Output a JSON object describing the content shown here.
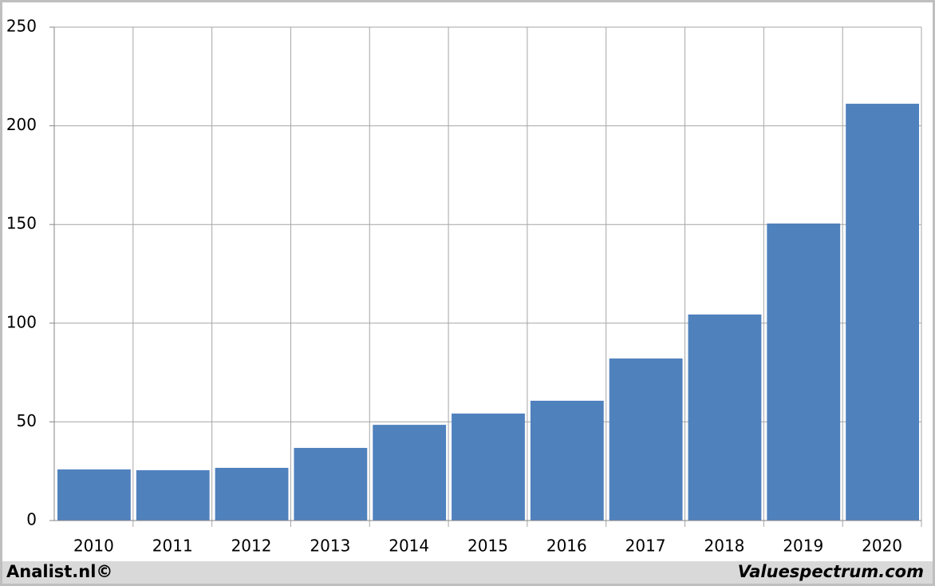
{
  "chart_data": {
    "type": "bar",
    "categories": [
      "2010",
      "2011",
      "2012",
      "2013",
      "2014",
      "2015",
      "2016",
      "2017",
      "2018",
      "2019",
      "2020"
    ],
    "values": [
      25.9,
      25.5,
      26.7,
      36.8,
      48.5,
      54.2,
      60.7,
      82.1,
      104.4,
      150.5,
      211.2
    ],
    "color": "#4f81bd",
    "ylim": [
      0,
      250
    ],
    "yticks": [
      0,
      50,
      100,
      150,
      200,
      250
    ],
    "grid": true
  },
  "footer": {
    "left": "Analist.nl©",
    "right": "Valuespectrum.com"
  }
}
